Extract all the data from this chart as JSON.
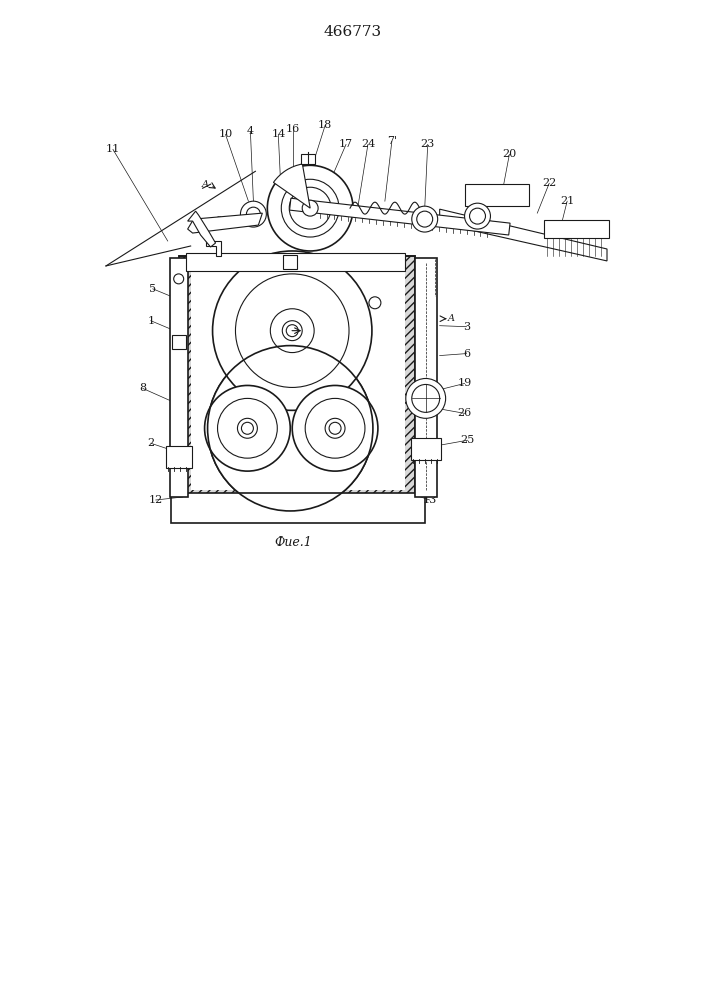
{
  "title": "466773",
  "caption": "Фие.1",
  "bg_color": "#ffffff",
  "line_color": "#1a1a1a",
  "title_fontsize": 11,
  "caption_fontsize": 9,
  "fig_width": 7.07,
  "fig_height": 10.0,
  "dpi": 100
}
